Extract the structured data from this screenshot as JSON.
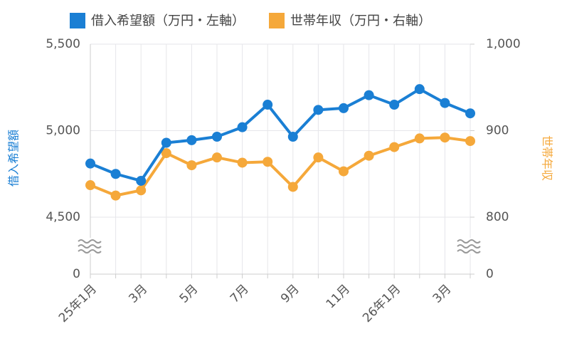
{
  "chart_data": {
    "type": "line",
    "categories": [
      "25年1月",
      null,
      "3月",
      null,
      "5月",
      null,
      "7月",
      null,
      "9月",
      null,
      "11月",
      null,
      "26年1月",
      null,
      "3月",
      null
    ],
    "series": [
      {
        "name": "借入希望額（万円・左軸）",
        "color": "#1a7fd4",
        "axis": "y",
        "values": [
          4810,
          4750,
          4710,
          4930,
          4945,
          4965,
          5020,
          5150,
          4965,
          5120,
          5130,
          5205,
          5150,
          5240,
          5160,
          5100
        ]
      },
      {
        "name": "世帯年収（万円・右軸）",
        "color": "#f5a83a",
        "axis": "y2",
        "values": [
          837,
          825,
          831,
          874,
          860,
          869,
          863,
          864,
          835,
          869,
          853,
          871,
          881,
          891,
          892,
          888
        ]
      }
    ],
    "ylabel": "借入希望額",
    "y2label": "世帯年収",
    "ylim": [
      0,
      5500
    ],
    "yticks": [
      0,
      {
        "value": 4500,
        "label": "4,500"
      },
      {
        "value": 5000,
        "label": "5,000"
      },
      {
        "value": 5500,
        "label": "5,500"
      }
    ],
    "ybreak": [
      0,
      4500
    ],
    "y2lim": [
      0,
      1000
    ],
    "y2ticks": [
      0,
      800,
      900,
      {
        "value": 1000,
        "label": "1,000"
      }
    ],
    "y2break": [
      0,
      800
    ],
    "grid": true,
    "legend": "top"
  }
}
